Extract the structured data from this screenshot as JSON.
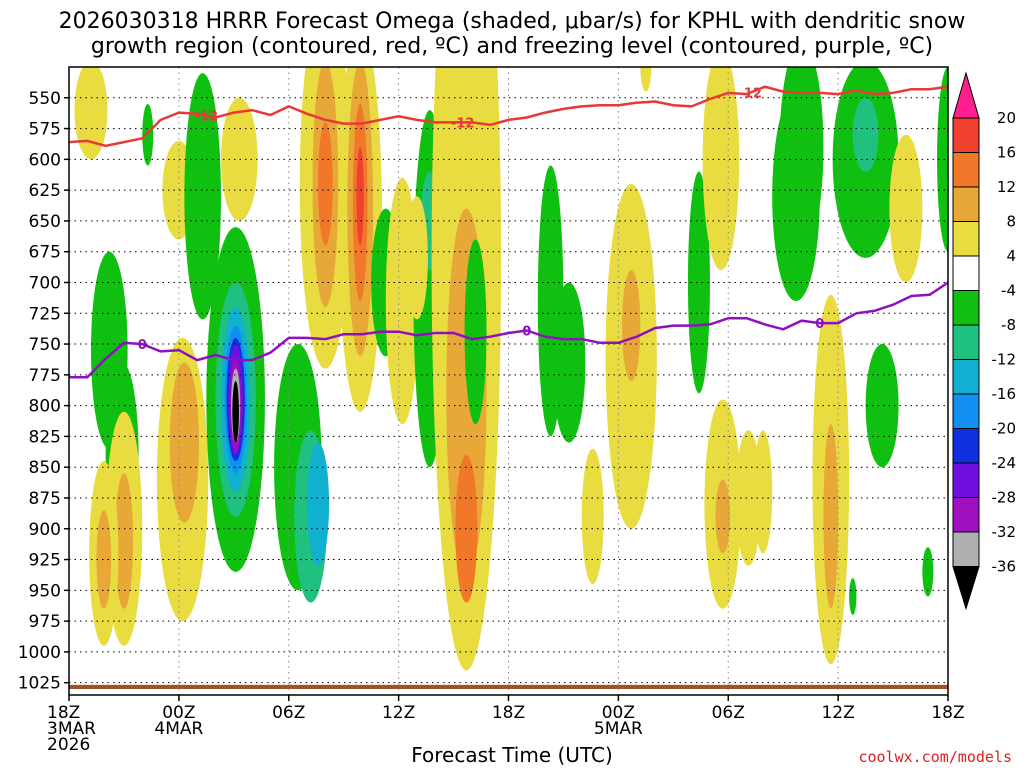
{
  "chart_data": {
    "type": "contour-time-height",
    "title_line1": "2026030318 HRRR Forecast Omega (shaded, μbar/s) for KPHL with dendritic snow",
    "title_line2": "growth region (contoured, red, ºC) and freezing level (contoured, purple, ºC)",
    "xlabel": "Forecast Time (UTC)",
    "credit": "coolwx.com/models",
    "x_hours_range": [
      0,
      48
    ],
    "y_pressure_range": [
      525,
      1035
    ],
    "y_ticks": [
      550,
      575,
      600,
      625,
      650,
      675,
      700,
      725,
      750,
      775,
      800,
      825,
      850,
      875,
      900,
      925,
      950,
      975,
      1000,
      1025
    ],
    "x_ticks": [
      {
        "hour": 0,
        "lines": [
          "18Z",
          "3MAR",
          "2026"
        ]
      },
      {
        "hour": 6,
        "lines": [
          "00Z",
          "4MAR"
        ]
      },
      {
        "hour": 12,
        "lines": [
          "06Z"
        ]
      },
      {
        "hour": 18,
        "lines": [
          "12Z"
        ]
      },
      {
        "hour": 24,
        "lines": [
          "18Z"
        ]
      },
      {
        "hour": 30,
        "lines": [
          "00Z",
          "5MAR"
        ]
      },
      {
        "hour": 36,
        "lines": [
          "06Z"
        ]
      },
      {
        "hour": 42,
        "lines": [
          "12Z"
        ]
      },
      {
        "hour": 48,
        "lines": [
          "18Z"
        ]
      }
    ],
    "colorbar": {
      "labels": [
        "20",
        "16",
        "12",
        "8",
        "4",
        "-4",
        "-8",
        "-12",
        "-16",
        "-20",
        "-24",
        "-28",
        "-32",
        "-36"
      ],
      "colors": [
        "#ff2090",
        "#f04030",
        "#f07828",
        "#e8a838",
        "#e8dc40",
        "#ffffff",
        "#10c010",
        "#20c080",
        "#10b0d0",
        "#1090f0",
        "#1030e0",
        "#7010e0",
        "#a010c0",
        "#b0b0b0",
        "#000000"
      ]
    },
    "dgz_line": {
      "name": "-12 C (dendritic growth zone)",
      "color": "#e83838",
      "label": "-12",
      "points": [
        [
          0,
          586
        ],
        [
          1,
          585
        ],
        [
          2,
          589
        ],
        [
          3,
          586
        ],
        [
          4,
          583
        ],
        [
          5,
          568
        ],
        [
          6,
          562
        ],
        [
          7,
          563
        ],
        [
          8,
          566
        ],
        [
          9,
          562
        ],
        [
          10,
          560
        ],
        [
          11,
          564
        ],
        [
          12,
          557
        ],
        [
          13,
          563
        ],
        [
          14,
          568
        ],
        [
          15,
          571
        ],
        [
          16,
          571
        ],
        [
          17,
          568
        ],
        [
          18,
          565
        ],
        [
          19,
          568
        ],
        [
          20,
          570
        ],
        [
          21,
          570
        ],
        [
          22,
          570
        ],
        [
          23,
          572
        ],
        [
          24,
          568
        ],
        [
          25,
          566
        ],
        [
          26,
          562
        ],
        [
          27,
          559
        ],
        [
          28,
          557
        ],
        [
          29,
          556
        ],
        [
          30,
          556
        ],
        [
          31,
          554
        ],
        [
          32,
          553
        ],
        [
          33,
          556
        ],
        [
          34,
          557
        ],
        [
          35,
          551
        ],
        [
          36,
          546
        ],
        [
          37,
          547
        ],
        [
          38,
          541
        ],
        [
          39,
          545
        ],
        [
          40,
          546
        ],
        [
          41,
          546
        ],
        [
          42,
          547
        ],
        [
          43,
          544
        ],
        [
          44,
          547
        ],
        [
          45,
          546
        ],
        [
          46,
          543
        ],
        [
          47,
          543
        ],
        [
          48,
          541
        ]
      ],
      "label_hours": [
        7.5,
        21.5,
        37.2
      ]
    },
    "freezing_line": {
      "name": "0 C (freezing level)",
      "color": "#9010c0",
      "label": "0",
      "points": [
        [
          0,
          777
        ],
        [
          1,
          777
        ],
        [
          2,
          762
        ],
        [
          3,
          749
        ],
        [
          4,
          750
        ],
        [
          5,
          756
        ],
        [
          6,
          755
        ],
        [
          7,
          763
        ],
        [
          8,
          759
        ],
        [
          9,
          763
        ],
        [
          10,
          763
        ],
        [
          11,
          757
        ],
        [
          12,
          745
        ],
        [
          13,
          745
        ],
        [
          14,
          746
        ],
        [
          15,
          742
        ],
        [
          16,
          742
        ],
        [
          17,
          740
        ],
        [
          18,
          740
        ],
        [
          19,
          743
        ],
        [
          20,
          741
        ],
        [
          21,
          741
        ],
        [
          22,
          746
        ],
        [
          23,
          744
        ],
        [
          24,
          741
        ],
        [
          25,
          739
        ],
        [
          26,
          744
        ],
        [
          27,
          746
        ],
        [
          28,
          746
        ],
        [
          29,
          749
        ],
        [
          30,
          749
        ],
        [
          31,
          744
        ],
        [
          32,
          737
        ],
        [
          33,
          735
        ],
        [
          34,
          735
        ],
        [
          35,
          734
        ],
        [
          36,
          729
        ],
        [
          37,
          729
        ],
        [
          38,
          734
        ],
        [
          39,
          738
        ],
        [
          40,
          731
        ],
        [
          41,
          733
        ],
        [
          42,
          733
        ],
        [
          43,
          725
        ],
        [
          44,
          723
        ],
        [
          45,
          718
        ],
        [
          46,
          711
        ],
        [
          47,
          710
        ],
        [
          48,
          700
        ]
      ],
      "label_hours": [
        4,
        25,
        41
      ]
    },
    "omega_regions": [
      {
        "t": 1.2,
        "p": 560,
        "w": 0.9,
        "h": 80,
        "v": 4
      },
      {
        "t": 6.0,
        "p": 625,
        "w": 0.9,
        "h": 80,
        "v": 4
      },
      {
        "t": 7.3,
        "p": 630,
        "w": 1.0,
        "h": 200,
        "v": -4
      },
      {
        "t": 9.3,
        "p": 600,
        "w": 1.0,
        "h": 100,
        "v": 4
      },
      {
        "t": 14.0,
        "p": 620,
        "w": 1.4,
        "h": 300,
        "v": 4
      },
      {
        "t": 14.0,
        "p": 620,
        "w": 0.7,
        "h": 200,
        "v": 8
      },
      {
        "t": 14.0,
        "p": 620,
        "w": 0.4,
        "h": 100,
        "v": 12
      },
      {
        "t": 15.9,
        "p": 650,
        "w": 1.2,
        "h": 310,
        "v": 4
      },
      {
        "t": 15.9,
        "p": 640,
        "w": 0.7,
        "h": 240,
        "v": 8
      },
      {
        "t": 15.9,
        "p": 635,
        "w": 0.4,
        "h": 160,
        "v": 12
      },
      {
        "t": 15.9,
        "p": 630,
        "w": 0.2,
        "h": 80,
        "v": 16
      },
      {
        "t": 17.3,
        "p": 700,
        "w": 0.8,
        "h": 120,
        "v": -4
      },
      {
        "t": 18.2,
        "p": 715,
        "w": 0.9,
        "h": 200,
        "v": 4
      },
      {
        "t": 19.7,
        "p": 705,
        "w": 0.9,
        "h": 290,
        "v": -4
      },
      {
        "t": 19.7,
        "p": 650,
        "w": 0.5,
        "h": 80,
        "v": -8
      },
      {
        "t": 21.7,
        "p": 680,
        "w": 1.9,
        "h": 670,
        "v": 4
      },
      {
        "t": 21.7,
        "p": 790,
        "w": 1.1,
        "h": 300,
        "v": 8
      },
      {
        "t": 21.7,
        "p": 900,
        "w": 0.6,
        "h": 120,
        "v": 12
      },
      {
        "t": 26.3,
        "p": 715,
        "w": 0.7,
        "h": 220,
        "v": -4
      },
      {
        "t": 27.3,
        "p": 765,
        "w": 0.9,
        "h": 130,
        "v": -4
      },
      {
        "t": 28.6,
        "p": 890,
        "w": 0.6,
        "h": 110,
        "v": 4
      },
      {
        "t": 30.7,
        "p": 760,
        "w": 1.4,
        "h": 280,
        "v": 4
      },
      {
        "t": 30.7,
        "p": 735,
        "w": 0.5,
        "h": 90,
        "v": 8
      },
      {
        "t": 34.4,
        "p": 700,
        "w": 0.6,
        "h": 180,
        "v": -4
      },
      {
        "t": 35.6,
        "p": 600,
        "w": 1.0,
        "h": 180,
        "v": 4
      },
      {
        "t": 35.7,
        "p": 880,
        "w": 1.0,
        "h": 170,
        "v": 4
      },
      {
        "t": 35.7,
        "p": 890,
        "w": 0.4,
        "h": 60,
        "v": 8
      },
      {
        "t": 37.1,
        "p": 875,
        "w": 0.7,
        "h": 110,
        "v": 4
      },
      {
        "t": 39.7,
        "p": 630,
        "w": 1.3,
        "h": 170,
        "v": -4
      },
      {
        "t": 40.0,
        "p": 590,
        "w": 1.2,
        "h": 170,
        "v": -4
      },
      {
        "t": 41.6,
        "p": 860,
        "w": 1.0,
        "h": 300,
        "v": 4
      },
      {
        "t": 41.6,
        "p": 890,
        "w": 0.4,
        "h": 150,
        "v": 8
      },
      {
        "t": 43.5,
        "p": 600,
        "w": 1.8,
        "h": 160,
        "v": -4
      },
      {
        "t": 43.5,
        "p": 580,
        "w": 0.7,
        "h": 60,
        "v": -8
      },
      {
        "t": 44.4,
        "p": 800,
        "w": 0.9,
        "h": 100,
        "v": -4
      },
      {
        "t": 45.7,
        "p": 640,
        "w": 0.9,
        "h": 120,
        "v": 4
      },
      {
        "t": 46.9,
        "p": 935,
        "w": 0.3,
        "h": 40,
        "v": -4
      },
      {
        "t": 48.0,
        "p": 600,
        "w": 0.6,
        "h": 150,
        "v": -4
      },
      {
        "t": 2.2,
        "p": 755,
        "w": 1.0,
        "h": 160,
        "v": -4
      },
      {
        "t": 2.9,
        "p": 840,
        "w": 0.9,
        "h": 150,
        "v": -4
      },
      {
        "t": 3.0,
        "p": 900,
        "w": 1.0,
        "h": 190,
        "v": 4
      },
      {
        "t": 3.0,
        "p": 910,
        "w": 0.5,
        "h": 110,
        "v": 8
      },
      {
        "t": 4.3,
        "p": 580,
        "w": 0.3,
        "h": 50,
        "v": -4
      },
      {
        "t": 6.2,
        "p": 860,
        "w": 1.4,
        "h": 230,
        "v": 4
      },
      {
        "t": 6.3,
        "p": 830,
        "w": 0.8,
        "h": 130,
        "v": 8
      },
      {
        "t": 9.1,
        "p": 795,
        "w": 1.6,
        "h": 280,
        "v": -4
      },
      {
        "t": 9.1,
        "p": 795,
        "w": 1.1,
        "h": 190,
        "v": -8
      },
      {
        "t": 9.1,
        "p": 795,
        "w": 0.8,
        "h": 150,
        "v": -12
      },
      {
        "t": 9.1,
        "p": 795,
        "w": 0.6,
        "h": 120,
        "v": -16
      },
      {
        "t": 9.1,
        "p": 795,
        "w": 0.5,
        "h": 100,
        "v": -20
      },
      {
        "t": 9.1,
        "p": 795,
        "w": 0.4,
        "h": 90,
        "v": -24
      },
      {
        "t": 9.1,
        "p": 800,
        "w": 0.3,
        "h": 75,
        "v": -28
      },
      {
        "t": 9.1,
        "p": 800,
        "w": 0.25,
        "h": 60,
        "v": -32
      },
      {
        "t": 9.1,
        "p": 805,
        "w": 0.18,
        "h": 50,
        "v": -36
      },
      {
        "t": 12.5,
        "p": 850,
        "w": 1.3,
        "h": 200,
        "v": -4
      },
      {
        "t": 13.2,
        "p": 890,
        "w": 0.9,
        "h": 140,
        "v": -8
      },
      {
        "t": 13.6,
        "p": 880,
        "w": 0.6,
        "h": 100,
        "v": -12
      },
      {
        "t": 19.0,
        "p": 680,
        "w": 0.6,
        "h": 100,
        "v": 4
      },
      {
        "t": 22.2,
        "p": 740,
        "w": 0.6,
        "h": 150,
        "v": -4
      },
      {
        "t": 37.9,
        "p": 870,
        "w": 0.5,
        "h": 100,
        "v": 4
      },
      {
        "t": 1.9,
        "p": 920,
        "w": 0.8,
        "h": 150,
        "v": 4
      },
      {
        "t": 1.9,
        "p": 925,
        "w": 0.4,
        "h": 80,
        "v": 8
      },
      {
        "t": 31.5,
        "p": 525,
        "w": 0.3,
        "h": 40,
        "v": 4
      },
      {
        "t": 42.8,
        "p": 955,
        "w": 0.2,
        "h": 30,
        "v": -4
      }
    ],
    "ground_layer": {
      "name": "terrain",
      "color": "#a0522d",
      "p_top": 1030
    }
  }
}
